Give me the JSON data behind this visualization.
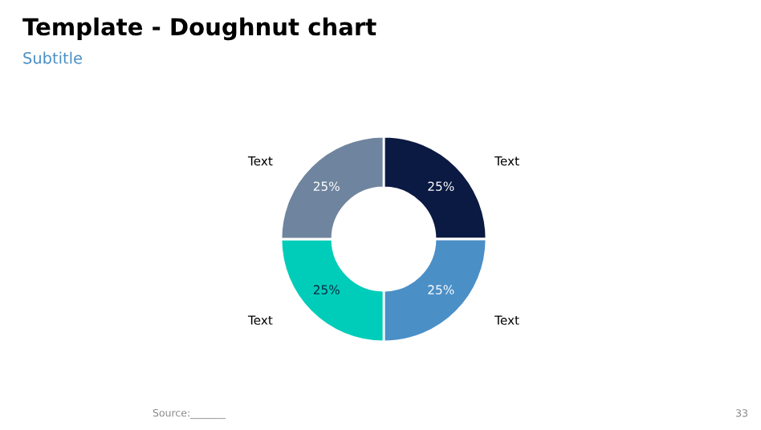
{
  "chart_data": {
    "type": "donut",
    "title": "Template - Doughnut chart",
    "subtitle": "Subtitle",
    "categories": [
      "Text",
      "Text",
      "Text",
      "Text"
    ],
    "values": [
      25,
      25,
      25,
      25
    ],
    "value_labels": [
      "25%",
      "25%",
      "25%",
      "25%"
    ],
    "colors": [
      "#0b1a42",
      "#4b8fc7",
      "#00cdb9",
      "#6f849e"
    ],
    "annotations": [
      "Source:_______",
      "33"
    ]
  }
}
